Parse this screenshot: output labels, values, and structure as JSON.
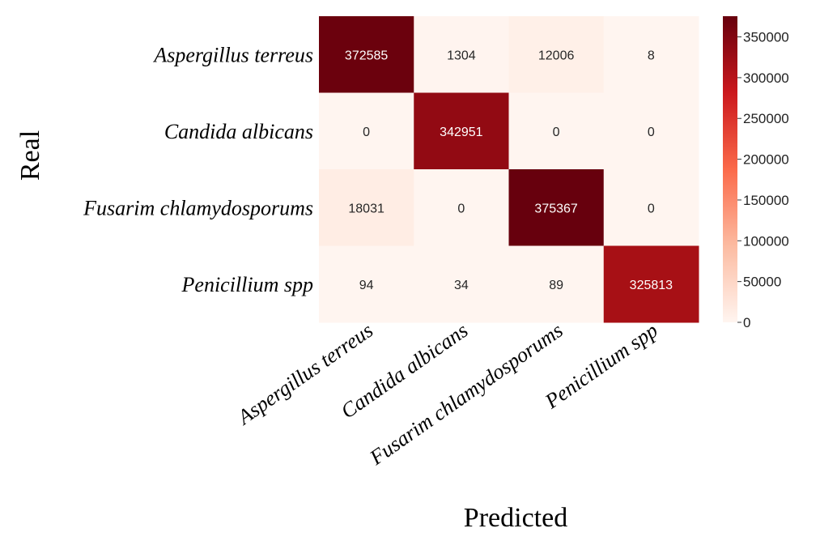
{
  "chart_data": {
    "type": "heatmap",
    "title": "",
    "xlabel": "Predicted",
    "ylabel": "Real",
    "rows": [
      "Aspergillus terreus",
      "Candida albicans",
      "Fusarim chlamydosporums",
      "Penicillium spp"
    ],
    "columns": [
      "Aspergillus terreus",
      "Candida albicans",
      "Fusarim chlamydosporums",
      "Penicillium spp"
    ],
    "values": [
      [
        372585,
        1304,
        12006,
        8
      ],
      [
        0,
        342951,
        0,
        0
      ],
      [
        18031,
        0,
        375367,
        0
      ],
      [
        94,
        34,
        89,
        325813
      ]
    ],
    "cell_labels": [
      [
        "372585",
        "1304",
        "12006",
        "8"
      ],
      [
        "0",
        "342951",
        "0",
        "0"
      ],
      [
        "18031",
        "0",
        "375367",
        "0"
      ],
      [
        "94",
        "34",
        "89",
        "325813"
      ]
    ],
    "colorscale": "Reds",
    "colorbar": {
      "range": [
        0,
        375367
      ],
      "ticks": [
        0,
        50000,
        100000,
        150000,
        200000,
        250000,
        300000,
        350000
      ],
      "tick_labels": [
        "0",
        "50000",
        "100000",
        "150000",
        "200000",
        "250000",
        "300000",
        "350000"
      ]
    },
    "grid": false
  }
}
